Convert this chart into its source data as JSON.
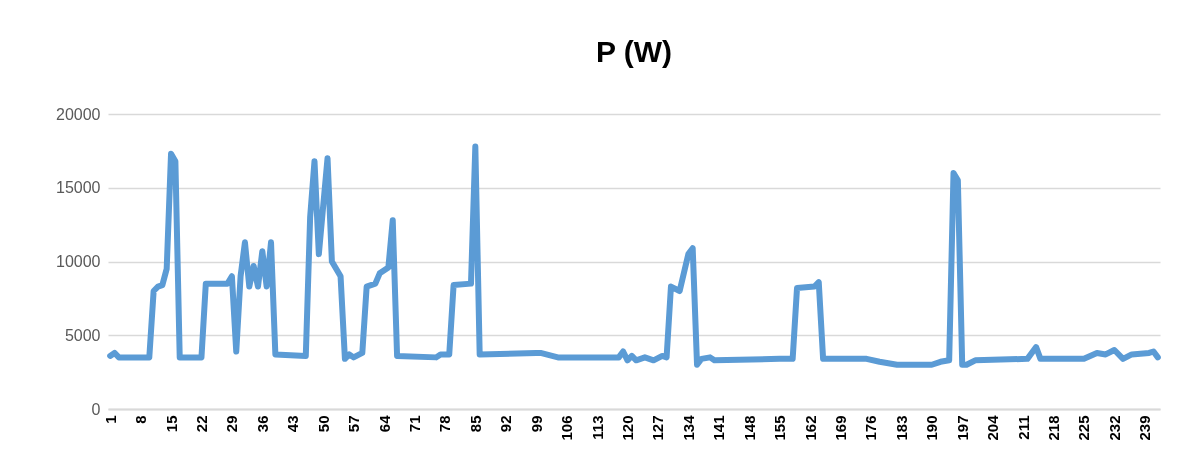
{
  "chart_data": {
    "type": "line",
    "title": "P (W)",
    "xlim": [
      0.5,
      242.5
    ],
    "xticks": [
      1,
      8,
      15,
      22,
      29,
      36,
      43,
      50,
      57,
      64,
      71,
      78,
      85,
      92,
      99,
      106,
      113,
      120,
      127,
      134,
      141,
      148,
      155,
      162,
      169,
      176,
      183,
      190,
      197,
      204,
      211,
      218,
      225,
      232,
      239
    ],
    "ylim": [
      0,
      20000
    ],
    "yticks": [
      0,
      5000,
      10000,
      15000,
      20000
    ],
    "grid": "y",
    "legend": false,
    "marker": "none",
    "line_style": "solid",
    "series": [
      {
        "color": "#5b9bd5",
        "x": [
          1,
          2,
          3,
          10,
          11,
          12,
          13,
          14,
          15,
          16,
          17,
          22,
          23,
          28,
          29,
          30,
          31,
          32,
          33,
          34,
          35,
          36,
          37,
          38,
          39,
          46,
          47,
          48,
          49,
          51,
          52,
          54,
          55,
          56,
          57,
          59,
          60,
          62,
          63,
          65,
          66,
          67,
          76,
          77,
          79,
          80,
          84,
          85,
          86,
          99,
          100,
          104,
          118,
          119,
          120,
          121,
          122,
          124,
          126,
          128,
          129,
          130,
          132,
          134,
          135,
          136,
          137,
          139,
          140,
          155,
          158,
          159,
          163,
          164,
          165,
          175,
          178,
          182,
          190,
          192,
          194,
          195,
          196,
          197,
          198,
          200,
          212,
          214,
          215,
          225,
          228,
          230,
          232,
          234,
          236,
          240,
          241,
          242
        ],
        "values": [
          3600,
          3800,
          3500,
          3500,
          8000,
          8300,
          8400,
          9500,
          17300,
          16800,
          3500,
          3500,
          8500,
          8500,
          9000,
          3900,
          9000,
          11300,
          8300,
          9700,
          8300,
          10700,
          8300,
          11300,
          3700,
          3600,
          13000,
          16800,
          10500,
          17000,
          10000,
          9000,
          3400,
          3700,
          3500,
          3800,
          8300,
          8500,
          9200,
          9600,
          12800,
          3600,
          3500,
          3700,
          3700,
          8400,
          8500,
          17800,
          3700,
          3800,
          3800,
          3500,
          3500,
          3900,
          3300,
          3600,
          3300,
          3500,
          3300,
          3600,
          3500,
          8300,
          8000,
          10500,
          10900,
          3000,
          3400,
          3500,
          3300,
          3400,
          3400,
          8200,
          8300,
          8600,
          3400,
          3400,
          3200,
          3000,
          3000,
          3200,
          3300,
          16000,
          15500,
          3000,
          3000,
          3300,
          3400,
          4200,
          3400,
          3400,
          3800,
          3700,
          4000,
          3400,
          3700,
          3800,
          3900,
          3500
        ]
      }
    ]
  }
}
